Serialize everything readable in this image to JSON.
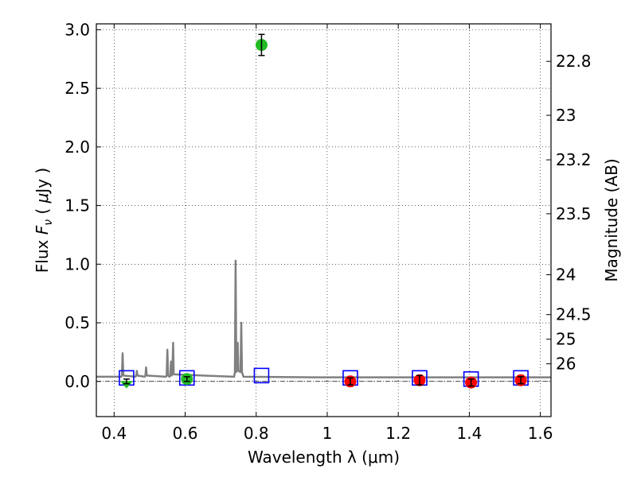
{
  "chart_data": {
    "type": "scatter",
    "xlabel": "Wavelength  λ (μm)",
    "ylabel_parts": [
      "Flux  ",
      "F",
      "ν",
      "  ( ",
      "μ",
      "Jy )"
    ],
    "y2label": "Magnitude (AB)",
    "xlim": [
      0.35,
      1.63
    ],
    "ylim": [
      -0.3,
      3.05
    ],
    "xticks": [
      0.4,
      0.6,
      0.8,
      1.0,
      1.2,
      1.4,
      1.6
    ],
    "xtick_labels": [
      "0.4",
      "0.6",
      "0.8",
      "1",
      "1.2",
      "1.4",
      "1.6"
    ],
    "yticks": [
      0.0,
      0.5,
      1.0,
      1.5,
      2.0,
      2.5,
      3.0
    ],
    "ytick_labels": [
      "0.0",
      "0.5",
      "1.0",
      "1.5",
      "2.0",
      "2.5",
      "3.0"
    ],
    "y2ticks": [
      {
        "label": "22.8",
        "flux": 2.73
      },
      {
        "label": "23",
        "flux": 2.27
      },
      {
        "label": "23.2",
        "flux": 1.89
      },
      {
        "label": "23.5",
        "flux": 1.43
      },
      {
        "label": "24",
        "flux": 0.91
      },
      {
        "label": "24.5",
        "flux": 0.57
      },
      {
        "label": "25",
        "flux": 0.36
      },
      {
        "label": "26",
        "flux": 0.15
      }
    ],
    "grid": true,
    "zero_line": true,
    "series": [
      {
        "kind": "model_spectrum",
        "color": "#808080",
        "points": [
          [
            0.35,
            0.04
          ],
          [
            0.42,
            0.04
          ],
          [
            0.422,
            0.05
          ],
          [
            0.424,
            0.24
          ],
          [
            0.426,
            0.05
          ],
          [
            0.46,
            0.04
          ],
          [
            0.462,
            0.05
          ],
          [
            0.464,
            0.09
          ],
          [
            0.466,
            0.05
          ],
          [
            0.486,
            0.04
          ],
          [
            0.488,
            0.05
          ],
          [
            0.49,
            0.12
          ],
          [
            0.492,
            0.05
          ],
          [
            0.546,
            0.04
          ],
          [
            0.548,
            0.05
          ],
          [
            0.55,
            0.27
          ],
          [
            0.552,
            0.05
          ],
          [
            0.556,
            0.04
          ],
          [
            0.558,
            0.05
          ],
          [
            0.56,
            0.17
          ],
          [
            0.562,
            0.05
          ],
          [
            0.564,
            0.06
          ],
          [
            0.566,
            0.33
          ],
          [
            0.568,
            0.06
          ],
          [
            0.738,
            0.04
          ],
          [
            0.74,
            0.08
          ],
          [
            0.742,
            1.03
          ],
          [
            0.744,
            0.08
          ],
          [
            0.746,
            0.1
          ],
          [
            0.748,
            0.33
          ],
          [
            0.75,
            0.09
          ],
          [
            0.756,
            0.08
          ],
          [
            0.758,
            0.5
          ],
          [
            0.76,
            0.08
          ],
          [
            0.764,
            0.04
          ],
          [
            0.96,
            0.035
          ],
          [
            1.0,
            0.035
          ],
          [
            1.2,
            0.035
          ],
          [
            1.4,
            0.035
          ],
          [
            1.63,
            0.035
          ]
        ]
      },
      {
        "kind": "model_photometry",
        "marker": "open-square",
        "color": "#0000ff",
        "points": [
          [
            0.435,
            0.03
          ],
          [
            0.605,
            0.03
          ],
          [
            0.815,
            0.05
          ],
          [
            1.065,
            0.03
          ],
          [
            1.26,
            0.03
          ],
          [
            1.405,
            0.02
          ],
          [
            1.545,
            0.03
          ]
        ]
      },
      {
        "kind": "detections",
        "marker": "filled-circle",
        "color": "#22bb22",
        "points": [
          {
            "x": 0.605,
            "y": 0.02,
            "err": 0.02
          },
          {
            "x": 0.815,
            "y": 2.87,
            "err": 0.09
          }
        ]
      },
      {
        "kind": "detections",
        "marker": "filled-circle",
        "color": "#ff0000",
        "points": [
          {
            "x": 1.065,
            "y": 0.0,
            "err": 0.03
          },
          {
            "x": 1.26,
            "y": 0.01,
            "err": 0.04
          },
          {
            "x": 1.405,
            "y": -0.01,
            "err": 0.03
          },
          {
            "x": 1.545,
            "y": 0.01,
            "err": 0.03
          }
        ]
      },
      {
        "kind": "upper_limit",
        "marker": "triangle-down",
        "color": "#22bb22",
        "points": [
          {
            "x": 0.435,
            "y": 0.0,
            "err": 0.02
          }
        ]
      }
    ]
  }
}
